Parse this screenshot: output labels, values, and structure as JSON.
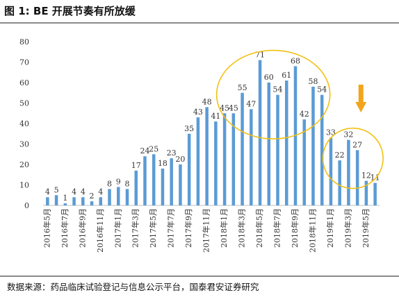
{
  "title": "图 1:  BE 开展节奏有所放缓",
  "source": "数据来源：药品临床试验登记与信息公示平台，国泰君安证券研究",
  "colors": {
    "bar": "#5b9bd5",
    "highlight": "#f2c012",
    "arrow": "#f2a41c",
    "text": "#333333"
  },
  "chart_data": {
    "type": "bar",
    "title": "",
    "xlabel": "",
    "ylabel": "",
    "ylim": [
      0,
      80
    ],
    "yticks": [
      0,
      10,
      20,
      30,
      40,
      50,
      60,
      70,
      80
    ],
    "grid": false,
    "categories": [
      "2016年5月",
      "2016年6月",
      "2016年7月",
      "2016年8月",
      "2016年9月",
      "2016年10月",
      "2016年11月",
      "2016年12月",
      "2017年1月",
      "2017年2月",
      "2017年3月",
      "2017年4月",
      "2017年5月",
      "2017年6月",
      "2017年7月",
      "2017年8月",
      "2017年9月",
      "2017年10月",
      "2017年11月",
      "2017年12月",
      "2018年1月",
      "2018年2月",
      "2018年3月",
      "2018年4月",
      "2018年5月",
      "2018年6月",
      "2018年7月",
      "2018年8月",
      "2018年9月",
      "2018年10月",
      "2018年11月",
      "2018年12月",
      "2019年1月",
      "2019年2月",
      "2019年3月",
      "2019年4月",
      "2019年5月",
      "2019年6月"
    ],
    "tick_labels": [
      "2016年5月",
      "2016年7月",
      "2016年9月",
      "2016年11月",
      "2017年1月",
      "2017年3月",
      "2017年5月",
      "2017年7月",
      "2017年9月",
      "2017年11月",
      "2018年1月",
      "2018年3月",
      "2018年5月",
      "2018年7月",
      "2018年9月",
      "2018年11月",
      "2019年1月",
      "2019年3月",
      "2019年5月"
    ],
    "values": [
      4,
      5,
      1,
      4,
      4,
      2,
      4,
      8,
      9,
      8,
      17,
      24,
      25,
      18,
      23,
      20,
      35,
      43,
      48,
      41,
      45,
      45,
      55,
      47,
      71,
      60,
      54,
      61,
      68,
      42,
      58,
      54,
      33,
      22,
      32,
      27,
      12,
      11
    ],
    "annotations": [
      {
        "type": "ellipse",
        "from": "2018年1月",
        "to": "2018年12月"
      },
      {
        "type": "ellipse",
        "from": "2019年1月",
        "to": "2019年6月"
      },
      {
        "type": "arrow-down",
        "at": "2019年4月"
      }
    ]
  }
}
